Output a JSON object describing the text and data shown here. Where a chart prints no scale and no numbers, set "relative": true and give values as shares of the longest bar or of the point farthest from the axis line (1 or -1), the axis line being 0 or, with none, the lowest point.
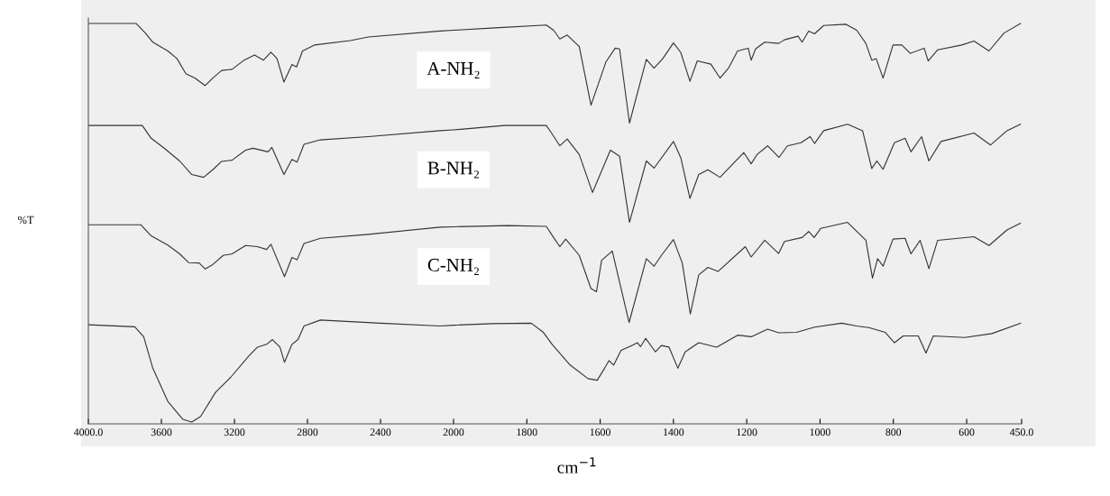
{
  "chart_data": [
    {
      "type": "line",
      "relative": true,
      "ylabel": "%T",
      "xlabel": "cm$^{−1}$",
      "xlim": [
        4000,
        2000
      ],
      "xticks": [
        {
          "value": 4000,
          "label": "4000.0"
        },
        3600,
        3200,
        2800,
        2400,
        2000
      ],
      "tick_labels": "x",
      "grid": false,
      "legend": false,
      "marker": "none",
      "line_style": "solid",
      "series": [
        {
          "name": "A-NH₂",
          "color": "#333333",
          "x": [
            4000,
            3738,
            3688,
            3647,
            3565,
            3515,
            3466,
            3417,
            3360,
            3319,
            3270,
            3213,
            3147,
            3090,
            3041,
            3000,
            2967,
            2929,
            2885,
            2860,
            2827,
            2762,
            2565,
            2467,
            2073,
            2000
          ],
          "values": [
            1.0,
            1.0,
            0.976,
            0.953,
            0.931,
            0.912,
            0.874,
            0.863,
            0.844,
            0.863,
            0.882,
            0.885,
            0.908,
            0.921,
            0.908,
            0.928,
            0.912,
            0.853,
            0.897,
            0.891,
            0.931,
            0.946,
            0.957,
            0.966,
            0.981,
            0.983
          ]
        },
        {
          "name": "B-NH₂",
          "color": "#333333",
          "x": [
            4000,
            3705,
            3656,
            3582,
            3500,
            3434,
            3369,
            3319,
            3270,
            3213,
            3139,
            3098,
            3016,
            2995,
            2929,
            2885,
            2857,
            2819,
            2729,
            2467,
            2073,
            2000
          ],
          "values": [
            0.744,
            0.744,
            0.712,
            0.686,
            0.655,
            0.621,
            0.614,
            0.633,
            0.654,
            0.657,
            0.682,
            0.687,
            0.678,
            0.689,
            0.621,
            0.659,
            0.652,
            0.697,
            0.708,
            0.716,
            0.731,
            0.733
          ]
        },
        {
          "name": "C-NH₂",
          "color": "#333333",
          "x": [
            4000,
            3713,
            3656,
            3565,
            3500,
            3451,
            3393,
            3360,
            3319,
            3262,
            3213,
            3139,
            3074,
            3024,
            3000,
            2926,
            2885,
            2857,
            2819,
            2729,
            2467,
            2073,
            2000
          ],
          "values": [
            0.495,
            0.495,
            0.467,
            0.444,
            0.422,
            0.4,
            0.399,
            0.384,
            0.395,
            0.418,
            0.422,
            0.443,
            0.44,
            0.433,
            0.446,
            0.365,
            0.413,
            0.407,
            0.448,
            0.461,
            0.471,
            0.489,
            0.49
          ]
        },
        {
          "color": "#333333",
          "x": [
            4000,
            3746,
            3697,
            3647,
            3565,
            3483,
            3434,
            3385,
            3303,
            3221,
            3123,
            3074,
            3024,
            2992,
            2951,
            2926,
            2885,
            2852,
            2819,
            2729,
            2401,
            2073,
            2000
          ],
          "values": [
            0.244,
            0.239,
            0.214,
            0.135,
            0.052,
            0.007,
            0.0,
            0.014,
            0.075,
            0.112,
            0.165,
            0.188,
            0.195,
            0.207,
            0.188,
            0.15,
            0.195,
            0.207,
            0.241,
            0.256,
            0.248,
            0.241,
            0.243
          ]
        }
      ]
    },
    {
      "type": "line",
      "relative": true,
      "xlim": [
        2000,
        450
      ],
      "xticks": [
        1800,
        1600,
        1400,
        1200,
        1000,
        800,
        600,
        {
          "value": 450,
          "label": "450.0"
        }
      ],
      "tick_labels": "x",
      "grid": false,
      "legend": false,
      "marker": "none",
      "line_style": "solid",
      "series": [
        {
          "color": "#333333",
          "x": [
            2000,
            1886,
            1747,
            1727,
            1710,
            1690,
            1657,
            1625,
            1584,
            1559,
            1547,
            1520,
            1474,
            1453,
            1429,
            1400,
            1380,
            1355,
            1335,
            1298,
            1273,
            1249,
            1225,
            1196,
            1188,
            1176,
            1151,
            1113,
            1097,
            1060,
            1049,
            1031,
            1015,
            990,
            929,
            900,
            875,
            859,
            847,
            828,
            801,
            777,
            754,
            716,
            705,
            679,
            613,
            580,
            539,
            498,
            453
          ],
          "values": [
            0.983,
            0.989,
            0.996,
            0.983,
            0.961,
            0.971,
            0.942,
            0.795,
            0.904,
            0.938,
            0.936,
            0.75,
            0.91,
            0.888,
            0.912,
            0.951,
            0.927,
            0.855,
            0.906,
            0.898,
            0.863,
            0.889,
            0.931,
            0.938,
            0.908,
            0.936,
            0.953,
            0.95,
            0.959,
            0.968,
            0.953,
            0.981,
            0.974,
            0.995,
            0.998,
            0.983,
            0.95,
            0.908,
            0.912,
            0.863,
            0.946,
            0.946,
            0.925,
            0.938,
            0.906,
            0.934,
            0.946,
            0.956,
            0.931,
            0.976,
            1.0
          ]
        },
        {
          "color": "#333333",
          "x": [
            2000,
            1861,
            1747,
            1731,
            1710,
            1690,
            1657,
            1621,
            1572,
            1547,
            1520,
            1474,
            1453,
            1400,
            1380,
            1355,
            1331,
            1306,
            1273,
            1208,
            1188,
            1172,
            1143,
            1112,
            1089,
            1052,
            1027,
            1015,
            990,
            925,
            884,
            859,
            845,
            828,
            797,
            768,
            752,
            723,
            703,
            670,
            580,
            535,
            490,
            453
          ],
          "values": [
            0.733,
            0.744,
            0.744,
            0.723,
            0.693,
            0.71,
            0.671,
            0.576,
            0.682,
            0.667,
            0.501,
            0.655,
            0.637,
            0.704,
            0.663,
            0.561,
            0.621,
            0.633,
            0.614,
            0.676,
            0.648,
            0.671,
            0.693,
            0.664,
            0.693,
            0.701,
            0.716,
            0.699,
            0.731,
            0.747,
            0.731,
            0.636,
            0.655,
            0.634,
            0.701,
            0.712,
            0.678,
            0.716,
            0.655,
            0.704,
            0.725,
            0.695,
            0.731,
            0.747
          ]
        },
        {
          "color": "#333333",
          "x": [
            2000,
            1853,
            1747,
            1727,
            1710,
            1694,
            1657,
            1625,
            1610,
            1596,
            1567,
            1521,
            1474,
            1453,
            1433,
            1400,
            1376,
            1354,
            1331,
            1306,
            1278,
            1204,
            1188,
            1151,
            1113,
            1097,
            1049,
            1031,
            1016,
            998,
            925,
            875,
            857,
            843,
            828,
            801,
            768,
            752,
            727,
            703,
            679,
            580,
            539,
            490,
            453
          ],
          "values": [
            0.49,
            0.493,
            0.491,
            0.463,
            0.44,
            0.459,
            0.418,
            0.335,
            0.327,
            0.406,
            0.429,
            0.25,
            0.41,
            0.391,
            0.418,
            0.458,
            0.399,
            0.271,
            0.369,
            0.388,
            0.378,
            0.44,
            0.414,
            0.456,
            0.423,
            0.453,
            0.463,
            0.478,
            0.463,
            0.486,
            0.501,
            0.456,
            0.361,
            0.41,
            0.391,
            0.459,
            0.461,
            0.422,
            0.456,
            0.385,
            0.456,
            0.465,
            0.443,
            0.482,
            0.499
          ]
        },
        {
          "color": "#333333",
          "x": [
            2000,
            1894,
            1788,
            1755,
            1731,
            1682,
            1633,
            1608,
            1588,
            1576,
            1563,
            1543,
            1514,
            1498,
            1490,
            1476,
            1449,
            1433,
            1412,
            1388,
            1368,
            1331,
            1282,
            1225,
            1188,
            1143,
            1113,
            1064,
            1015,
            941,
            900,
            867,
            822,
            797,
            773,
            732,
            711,
            691,
            605,
            531,
            453
          ],
          "values": [
            0.243,
            0.247,
            0.248,
            0.225,
            0.195,
            0.143,
            0.109,
            0.105,
            0.135,
            0.154,
            0.143,
            0.18,
            0.192,
            0.199,
            0.189,
            0.21,
            0.176,
            0.192,
            0.188,
            0.135,
            0.176,
            0.199,
            0.188,
            0.218,
            0.214,
            0.233,
            0.224,
            0.225,
            0.238,
            0.248,
            0.241,
            0.237,
            0.225,
            0.199,
            0.216,
            0.216,
            0.173,
            0.216,
            0.212,
            0.222,
            0.248
          ]
        }
      ]
    }
  ]
}
